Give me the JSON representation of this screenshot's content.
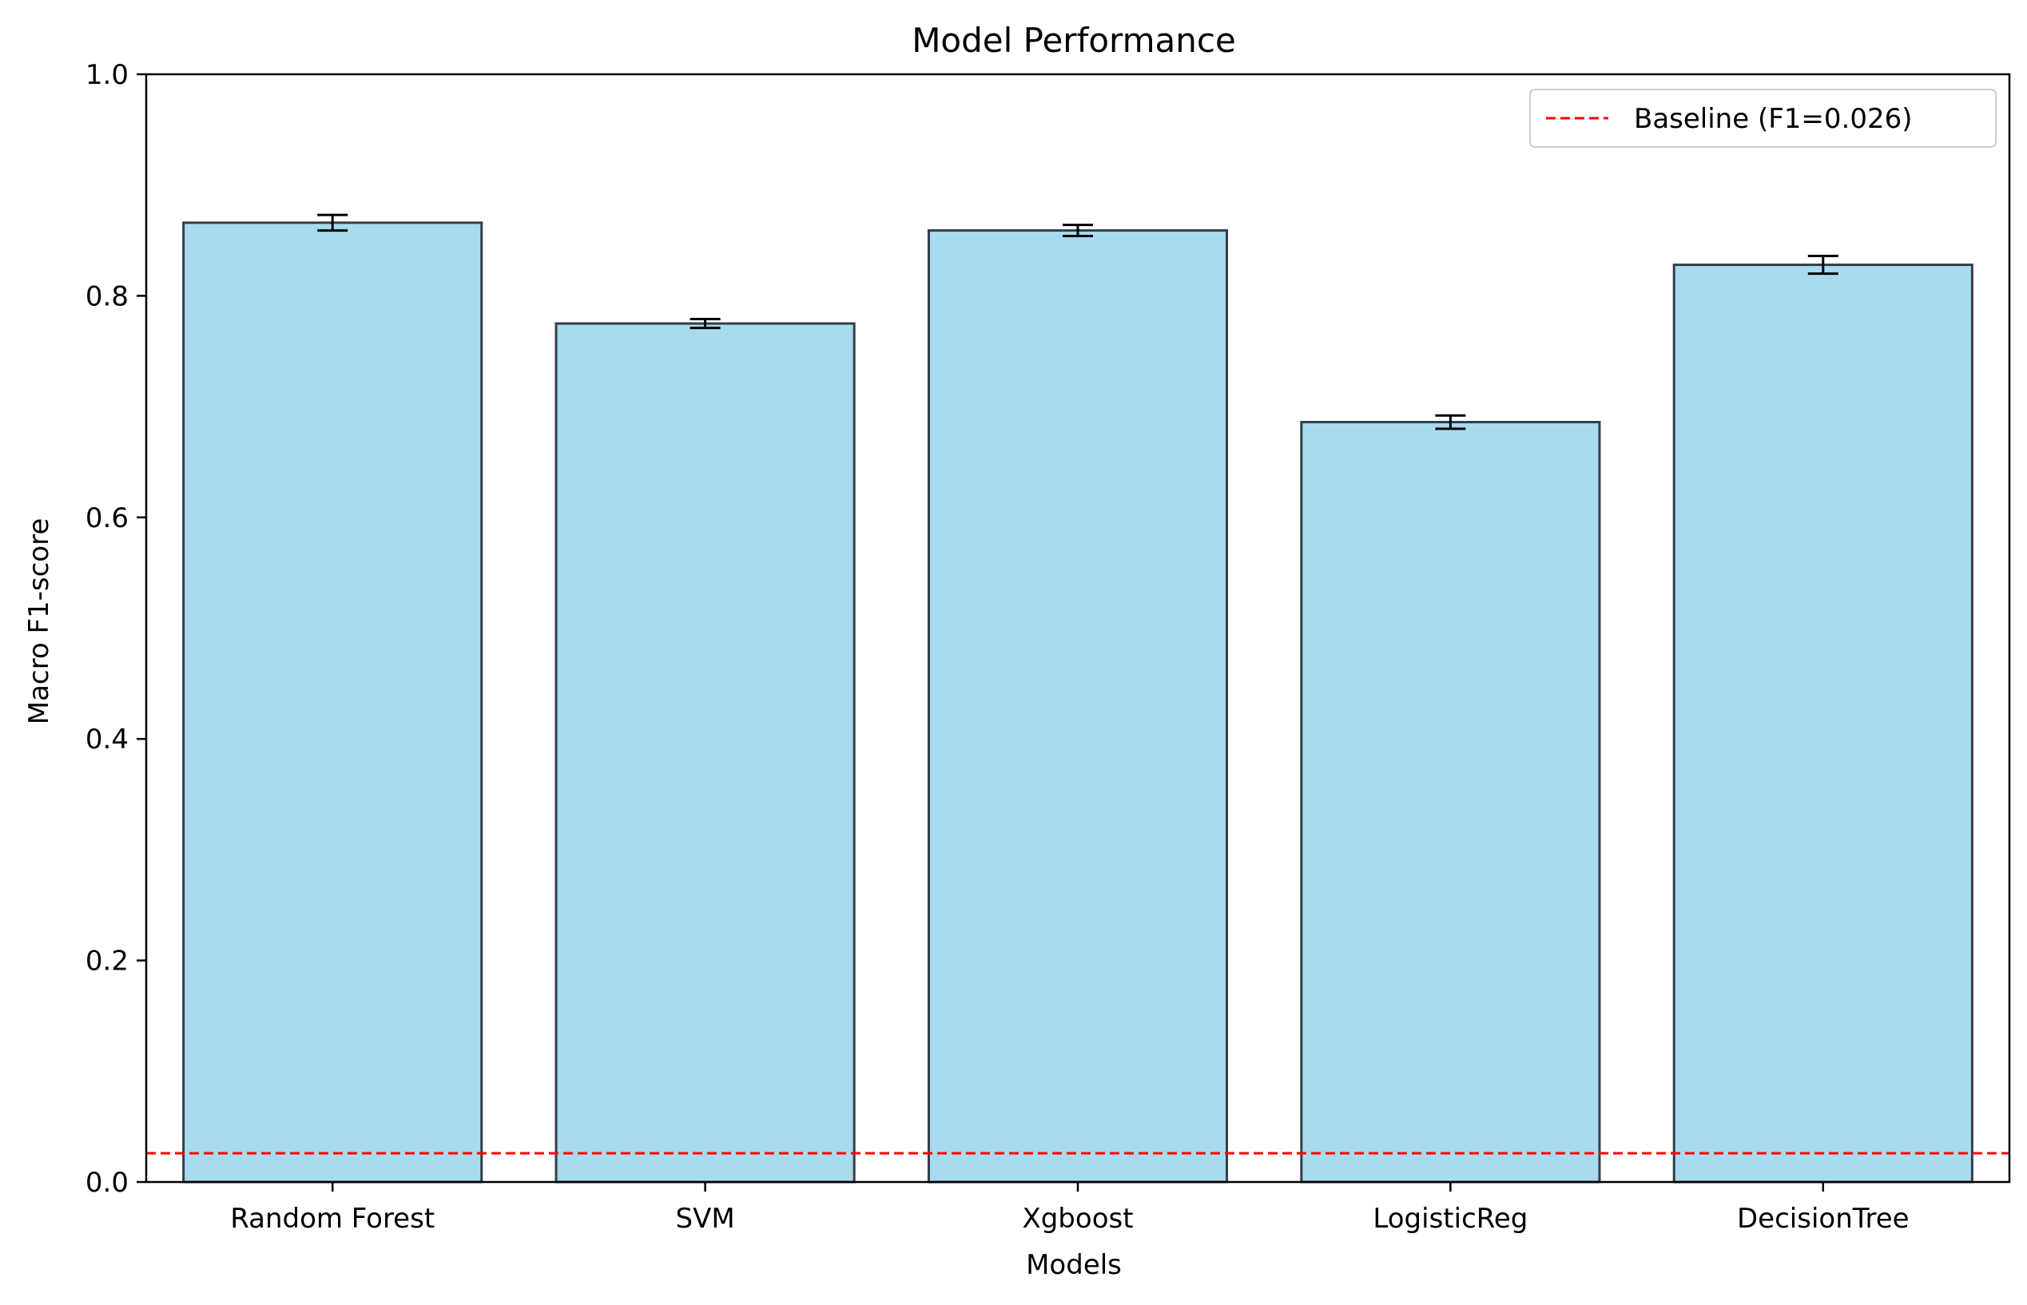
{
  "chart_data": {
    "type": "bar",
    "title": "Model Performance",
    "xlabel": "Models",
    "ylabel": "Macro F1-score",
    "categories": [
      "Random Forest",
      "SVM",
      "Xgboost",
      "LogisticReg",
      "DecisionTree"
    ],
    "values": [
      0.866,
      0.775,
      0.859,
      0.686,
      0.828
    ],
    "errors": [
      0.007,
      0.004,
      0.005,
      0.006,
      0.008
    ],
    "ylim": [
      0,
      1.0
    ],
    "yticks": [
      "0.0",
      "0.2",
      "0.4",
      "0.6",
      "0.8",
      "1.0"
    ],
    "yticks_values": [
      0,
      0.2,
      0.4,
      0.6,
      0.8,
      1.0
    ],
    "baseline": {
      "value": 0.026,
      "label": "Baseline (F1=0.026)"
    },
    "legend_position": "top-right",
    "grid": false,
    "colors": {
      "bar_fill": "#a8dbed",
      "bar_edge": "#333f48",
      "error_bar": "#000000",
      "baseline": "#ff0000"
    }
  }
}
